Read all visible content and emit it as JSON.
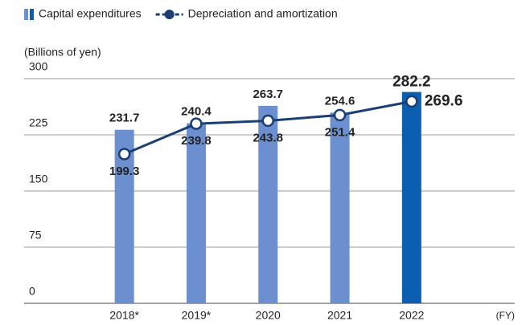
{
  "chart_data": {
    "type": "bar",
    "y_label": "(Billions of yen)",
    "x_label": "(FY)",
    "categories": [
      "2018*",
      "2019*",
      "2020",
      "2021",
      "2022"
    ],
    "series": [
      {
        "name": "Capital expenditures",
        "type": "bar",
        "color": "#6b8fcf",
        "colors": [
          "#6b8fcf",
          "#6b8fcf",
          "#6b8fcf",
          "#6b8fcf",
          "#0b5fb0"
        ],
        "values": [
          231.7,
          240.4,
          263.7,
          254.6,
          282.2
        ]
      },
      {
        "name": "Depreciation and amortization",
        "type": "line",
        "color": "#1b3f73",
        "values": [
          199.3,
          239.8,
          243.8,
          251.4,
          269.6
        ]
      }
    ],
    "ylim": [
      0,
      300
    ],
    "yticks": [
      0,
      75,
      150,
      225,
      300
    ],
    "grid": true
  }
}
